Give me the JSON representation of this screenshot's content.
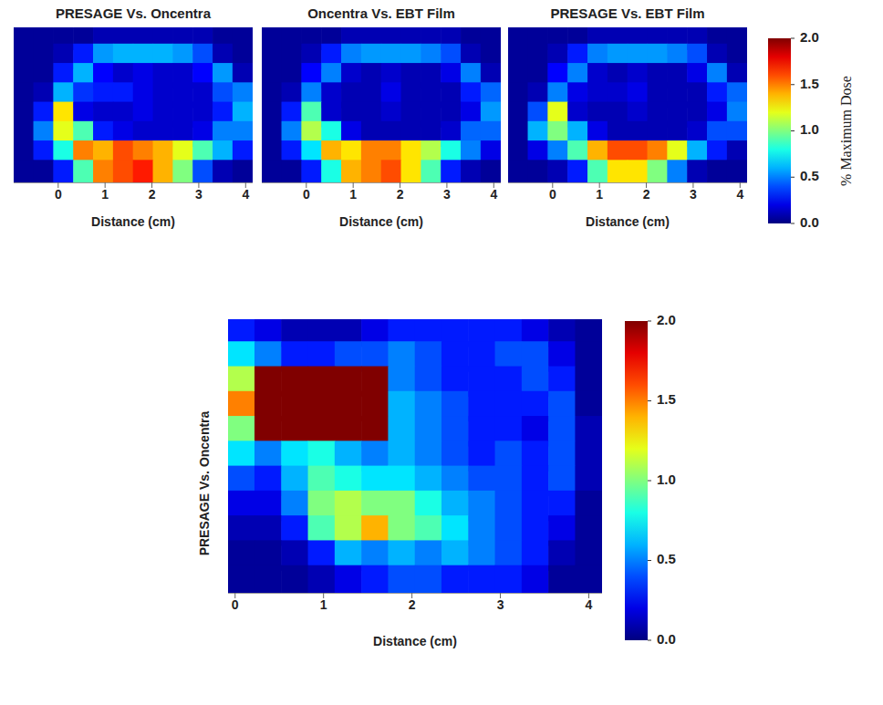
{
  "chart_data": [
    {
      "type": "heatmap",
      "title": "PRESAGE Vs. Oncentra",
      "xlabel": "Distance (cm)",
      "xlim": [
        -0.95,
        4.15
      ],
      "xticks": [
        0,
        1,
        2,
        3,
        4
      ],
      "tick_labels": "x",
      "zlim": [
        0,
        2
      ],
      "cells": [
        [
          0.05,
          0.05,
          0.05,
          0.05,
          0.1,
          0.1,
          0.1,
          0.1,
          0.1,
          0.1,
          0.05,
          0.05
        ],
        [
          0.05,
          0.05,
          0.1,
          0.3,
          0.55,
          0.6,
          0.6,
          0.6,
          0.55,
          0.4,
          0.1,
          0.05
        ],
        [
          0.05,
          0.05,
          0.3,
          0.6,
          0.25,
          0.15,
          0.2,
          0.15,
          0.15,
          0.25,
          0.55,
          0.1
        ],
        [
          0.05,
          0.1,
          0.6,
          0.35,
          0.3,
          0.3,
          0.2,
          0.15,
          0.15,
          0.15,
          0.4,
          0.5
        ],
        [
          0.05,
          0.3,
          1.3,
          0.2,
          0.15,
          0.15,
          0.2,
          0.15,
          0.15,
          0.15,
          0.3,
          0.6
        ],
        [
          0.05,
          0.5,
          1.2,
          0.9,
          0.3,
          0.2,
          0.15,
          0.15,
          0.15,
          0.2,
          0.5,
          0.5
        ],
        [
          0.05,
          0.3,
          0.8,
          1.5,
          1.4,
          1.6,
          1.5,
          1.4,
          1.2,
          0.9,
          0.6,
          0.3
        ],
        [
          0.05,
          0.05,
          0.3,
          0.9,
          1.5,
          1.6,
          1.7,
          1.4,
          1.0,
          0.4,
          0.1,
          0.05
        ]
      ]
    },
    {
      "type": "heatmap",
      "title": "Oncentra Vs. EBT Film",
      "xlabel": "Distance (cm)",
      "xlim": [
        -0.95,
        4.15
      ],
      "xticks": [
        0,
        1,
        2,
        3,
        4
      ],
      "tick_labels": "x",
      "zlim": [
        0,
        2
      ],
      "cells": [
        [
          0.05,
          0.05,
          0.05,
          0.05,
          0.1,
          0.1,
          0.1,
          0.1,
          0.1,
          0.1,
          0.05,
          0.05
        ],
        [
          0.05,
          0.05,
          0.1,
          0.3,
          0.5,
          0.55,
          0.55,
          0.55,
          0.5,
          0.4,
          0.1,
          0.05
        ],
        [
          0.05,
          0.05,
          0.25,
          0.5,
          0.15,
          0.1,
          0.15,
          0.1,
          0.1,
          0.2,
          0.5,
          0.1
        ],
        [
          0.05,
          0.1,
          0.5,
          0.15,
          0.1,
          0.1,
          0.2,
          0.1,
          0.1,
          0.1,
          0.3,
          0.45
        ],
        [
          0.05,
          0.3,
          0.9,
          0.15,
          0.1,
          0.1,
          0.15,
          0.1,
          0.1,
          0.1,
          0.2,
          0.55
        ],
        [
          0.05,
          0.5,
          1.1,
          0.8,
          0.2,
          0.1,
          0.1,
          0.1,
          0.1,
          0.15,
          0.45,
          0.45
        ],
        [
          0.05,
          0.3,
          0.7,
          1.4,
          1.3,
          1.5,
          1.5,
          1.3,
          1.1,
          0.8,
          0.5,
          0.2
        ],
        [
          0.05,
          0.05,
          0.3,
          0.8,
          1.4,
          1.5,
          1.6,
          1.3,
          0.9,
          0.3,
          0.1,
          0.05
        ]
      ]
    },
    {
      "type": "heatmap",
      "title": "PRESAGE Vs. EBT Film",
      "xlabel": "Distance (cm)",
      "xlim": [
        -0.95,
        4.15
      ],
      "xticks": [
        0,
        1,
        2,
        3,
        4
      ],
      "tick_labels": "x",
      "zlim": [
        0,
        2
      ],
      "zticks": [
        {
          "value": 0,
          "label": "0.0"
        },
        {
          "value": 0.5,
          "label": "0.5"
        },
        {
          "value": 1,
          "label": "1.0"
        },
        {
          "value": 1.5,
          "label": "1.5"
        },
        {
          "value": 2,
          "label": "2.0"
        }
      ],
      "zlabel": "% Maximum Dose",
      "cells": [
        [
          0.05,
          0.05,
          0.05,
          0.05,
          0.1,
          0.1,
          0.1,
          0.1,
          0.1,
          0.1,
          0.05,
          0.05
        ],
        [
          0.05,
          0.05,
          0.1,
          0.3,
          0.5,
          0.55,
          0.55,
          0.55,
          0.5,
          0.4,
          0.1,
          0.05
        ],
        [
          0.05,
          0.05,
          0.25,
          0.5,
          0.15,
          0.1,
          0.15,
          0.1,
          0.1,
          0.2,
          0.5,
          0.1
        ],
        [
          0.05,
          0.1,
          0.5,
          0.2,
          0.15,
          0.15,
          0.2,
          0.1,
          0.1,
          0.1,
          0.3,
          0.45
        ],
        [
          0.05,
          0.4,
          1.2,
          0.15,
          0.1,
          0.1,
          0.15,
          0.1,
          0.1,
          0.1,
          0.2,
          0.5
        ],
        [
          0.05,
          0.6,
          1.0,
          0.6,
          0.2,
          0.1,
          0.1,
          0.1,
          0.1,
          0.15,
          0.4,
          0.4
        ],
        [
          0.05,
          0.2,
          0.5,
          0.9,
          1.4,
          1.6,
          1.6,
          1.5,
          1.2,
          0.6,
          0.3,
          0.1
        ],
        [
          0.05,
          0.05,
          0.1,
          0.3,
          0.9,
          1.3,
          1.3,
          1.0,
          0.5,
          0.1,
          0.05,
          0.05
        ]
      ]
    },
    {
      "type": "heatmap",
      "ylabel": "PRESAGE Vs. Oncentra",
      "xlabel": "Distance (cm)",
      "xlim": [
        -0.08,
        4.15
      ],
      "xticks": [
        0,
        1,
        2,
        3,
        4
      ],
      "tick_labels": "x",
      "zlim": [
        0,
        2
      ],
      "zticks": [
        {
          "value": 0,
          "label": "0.0"
        },
        {
          "value": 0.5,
          "label": "0.5"
        },
        {
          "value": 1,
          "label": "1.0"
        },
        {
          "value": 1.5,
          "label": "1.5"
        },
        {
          "value": 2,
          "label": "2.0"
        }
      ],
      "cells": [
        [
          0.3,
          0.2,
          0.1,
          0.1,
          0.1,
          0.2,
          0.3,
          0.3,
          0.3,
          0.3,
          0.3,
          0.2,
          0.1,
          0.05
        ],
        [
          0.7,
          0.5,
          0.3,
          0.3,
          0.4,
          0.4,
          0.5,
          0.4,
          0.3,
          0.3,
          0.4,
          0.4,
          0.2,
          0.05
        ],
        [
          1.1,
          2.2,
          2.3,
          2.3,
          2.3,
          2.2,
          0.5,
          0.4,
          0.3,
          0.3,
          0.3,
          0.4,
          0.3,
          0.05
        ],
        [
          1.5,
          2.3,
          2.3,
          2.3,
          2.3,
          2.3,
          0.6,
          0.5,
          0.4,
          0.3,
          0.3,
          0.3,
          0.4,
          0.05
        ],
        [
          1.0,
          2.1,
          2.3,
          2.3,
          2.3,
          2.1,
          0.6,
          0.5,
          0.4,
          0.3,
          0.3,
          0.2,
          0.4,
          0.1
        ],
        [
          0.7,
          0.5,
          0.7,
          0.8,
          0.6,
          0.5,
          0.6,
          0.5,
          0.4,
          0.3,
          0.4,
          0.3,
          0.4,
          0.1
        ],
        [
          0.4,
          0.3,
          0.6,
          0.9,
          0.8,
          0.7,
          0.7,
          0.6,
          0.5,
          0.4,
          0.4,
          0.3,
          0.4,
          0.1
        ],
        [
          0.2,
          0.2,
          0.5,
          1.0,
          1.1,
          1.0,
          1.0,
          0.8,
          0.6,
          0.5,
          0.4,
          0.3,
          0.3,
          0.05
        ],
        [
          0.1,
          0.1,
          0.3,
          0.9,
          1.1,
          1.4,
          1.0,
          0.9,
          0.7,
          0.5,
          0.4,
          0.3,
          0.2,
          0.05
        ],
        [
          0.05,
          0.05,
          0.1,
          0.3,
          0.6,
          0.5,
          0.6,
          0.5,
          0.6,
          0.5,
          0.4,
          0.3,
          0.1,
          0.05
        ],
        [
          0.05,
          0.05,
          0.05,
          0.1,
          0.2,
          0.3,
          0.4,
          0.4,
          0.3,
          0.3,
          0.3,
          0.2,
          0.05,
          0.05
        ]
      ]
    }
  ]
}
